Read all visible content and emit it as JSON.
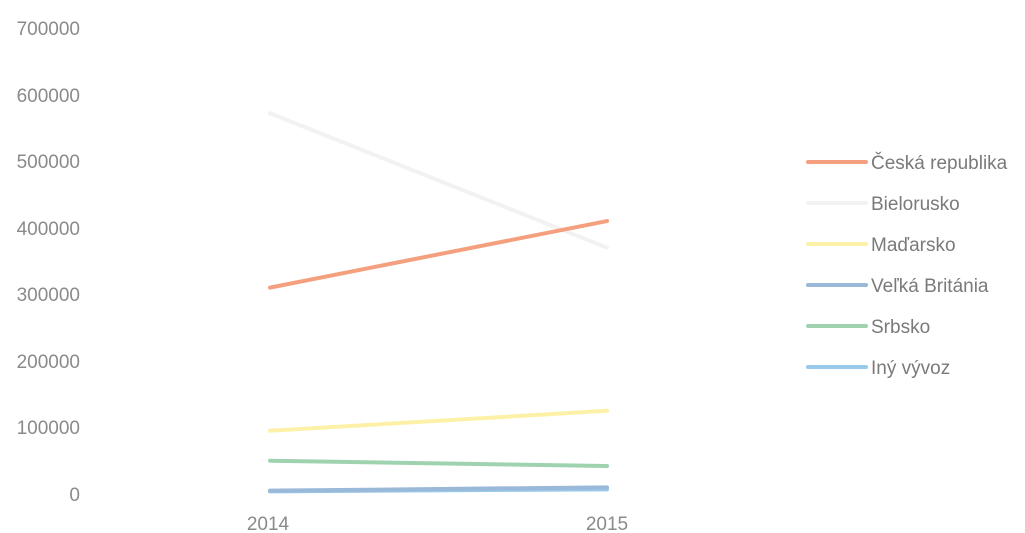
{
  "chart_data": {
    "type": "line",
    "categories": [
      "2014",
      "2015"
    ],
    "y_ticks": [
      "700000",
      "600000",
      "500000",
      "400000",
      "300000",
      "200000",
      "100000",
      "0"
    ],
    "ylim": [
      0,
      700000
    ],
    "grid": false,
    "legend_position": "right",
    "series": [
      {
        "name": "Česká republika",
        "values": [
          310000,
          410000
        ],
        "color": "#f4a07f"
      },
      {
        "name": "Bielorusko",
        "values": [
          572000,
          370000
        ],
        "color": "#f2f2f2"
      },
      {
        "name": "Maďarsko",
        "values": [
          95000,
          125000
        ],
        "color": "#fdf1a8"
      },
      {
        "name": "Veľká Británia",
        "values": [
          5000,
          10000
        ],
        "color": "#9ab8d8"
      },
      {
        "name": "Srbsko",
        "values": [
          50000,
          42000
        ],
        "color": "#9fd3b0"
      },
      {
        "name": "Iný vývoz",
        "values": [
          4000,
          7000
        ],
        "color": "#98c8ea"
      }
    ]
  }
}
